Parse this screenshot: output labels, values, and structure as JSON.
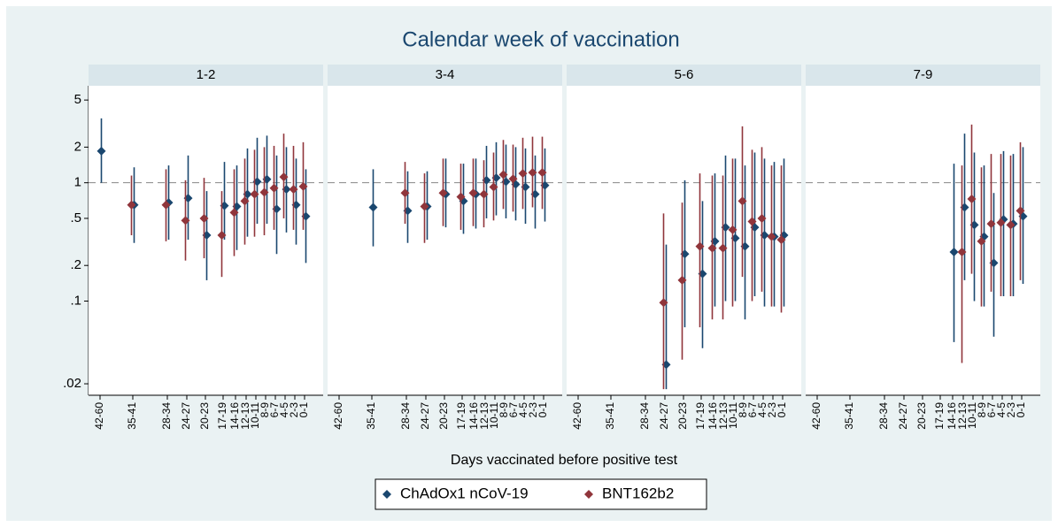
{
  "chart_data": {
    "type": "dot-ci",
    "title": "Calendar week of vaccination",
    "x_label": "Days vaccinated before positive test",
    "categories": [
      "42-60",
      "35-41",
      "28-34",
      "24-27",
      "20-23",
      "17-19",
      "14-16",
      "12-13",
      "10-11",
      "8-9",
      "6-7",
      "4-5",
      "2-3",
      "0-1"
    ],
    "log_scale": true,
    "ylim": [
      0.016,
      6.6
    ],
    "yticks": [
      {
        "value": 0.02,
        "label": ".02"
      },
      {
        "value": 0.1,
        "label": ".1"
      },
      {
        "value": 0.2,
        "label": ".2"
      },
      {
        "value": 0.5,
        "label": ".5"
      },
      1,
      2,
      5
    ],
    "reference_line": 1,
    "series": [
      {
        "name": "ChAdOx1 nCoV-19",
        "color": "#1a476f"
      },
      {
        "name": "BNT162b2",
        "color": "#90353b"
      }
    ],
    "panels": [
      {
        "title": "1-2",
        "series": [
          {
            "values": [
              1.85,
              0.65,
              0.68,
              0.74,
              0.36,
              0.64,
              0.63,
              0.8,
              1.02,
              1.07,
              0.6,
              0.88,
              0.65,
              0.52
            ],
            "lower": [
              1.0,
              0.31,
              0.33,
              0.33,
              0.15,
              0.33,
              0.27,
              0.35,
              0.45,
              0.45,
              0.25,
              0.38,
              0.3,
              0.21
            ],
            "upper": [
              3.5,
              1.35,
              1.4,
              1.7,
              0.85,
              1.5,
              1.4,
              1.95,
              2.4,
              2.5,
              1.7,
              2.0,
              1.6,
              1.3
            ]
          },
          {
            "values": [
              null,
              0.65,
              0.65,
              0.48,
              0.5,
              0.36,
              0.56,
              0.7,
              0.8,
              0.83,
              0.9,
              1.12,
              0.88,
              0.93
            ],
            "lower": [
              null,
              0.36,
              0.32,
              0.22,
              0.23,
              0.16,
              0.24,
              0.3,
              0.35,
              0.36,
              0.4,
              0.5,
              0.4,
              0.4
            ],
            "upper": [
              null,
              1.15,
              1.3,
              1.05,
              1.1,
              0.85,
              1.3,
              1.6,
              1.9,
              2.0,
              2.05,
              2.6,
              2.05,
              2.2
            ]
          }
        ]
      },
      {
        "title": "3-4",
        "series": [
          {
            "values": [
              null,
              0.62,
              0.58,
              0.63,
              0.8,
              0.7,
              0.8,
              1.05,
              1.1,
              1.02,
              0.97,
              0.92,
              0.8,
              0.95
            ],
            "lower": [
              null,
              0.29,
              0.31,
              0.33,
              0.42,
              0.37,
              0.41,
              0.5,
              0.53,
              0.5,
              0.48,
              0.45,
              0.41,
              0.47
            ],
            "upper": [
              null,
              1.3,
              1.25,
              1.25,
              1.6,
              1.45,
              1.6,
              2.05,
              2.2,
              2.1,
              2.0,
              1.95,
              1.7,
              1.95
            ]
          },
          {
            "values": [
              null,
              null,
              0.82,
              0.63,
              0.82,
              0.76,
              0.82,
              0.8,
              0.92,
              1.17,
              1.08,
              1.2,
              1.22,
              1.22
            ],
            "lower": [
              null,
              null,
              0.45,
              0.31,
              0.43,
              0.4,
              0.43,
              0.42,
              0.48,
              0.6,
              0.57,
              0.6,
              0.62,
              0.6
            ],
            "upper": [
              null,
              null,
              1.5,
              1.2,
              1.6,
              1.45,
              1.6,
              1.55,
              1.8,
              2.3,
              2.1,
              2.4,
              2.45,
              2.45
            ]
          }
        ]
      },
      {
        "title": "5-6",
        "series": [
          {
            "values": [
              null,
              null,
              null,
              0.029,
              0.25,
              0.17,
              0.32,
              0.42,
              0.34,
              0.29,
              0.42,
              0.36,
              0.35,
              0.36
            ],
            "lower": [
              null,
              null,
              null,
              0.018,
              0.06,
              0.04,
              0.09,
              0.1,
              0.1,
              0.07,
              0.11,
              0.09,
              0.09,
              0.09
            ],
            "upper": [
              null,
              null,
              null,
              0.3,
              1.05,
              0.7,
              1.2,
              1.7,
              1.6,
              1.4,
              1.8,
              1.6,
              1.5,
              1.6
            ]
          },
          {
            "values": [
              null,
              null,
              null,
              0.097,
              0.15,
              0.29,
              0.28,
              0.28,
              0.4,
              0.7,
              0.47,
              0.5,
              0.35,
              0.33
            ],
            "lower": [
              null,
              null,
              null,
              0.018,
              0.032,
              0.06,
              0.07,
              0.07,
              0.09,
              0.16,
              0.1,
              0.12,
              0.09,
              0.08
            ],
            "upper": [
              null,
              null,
              null,
              0.55,
              0.68,
              1.2,
              1.15,
              1.15,
              1.6,
              3.0,
              1.9,
              2.0,
              1.4,
              1.4
            ]
          }
        ]
      },
      {
        "title": "7-9",
        "series": [
          {
            "values": [
              null,
              null,
              null,
              null,
              null,
              null,
              0.26,
              0.62,
              0.44,
              0.35,
              0.21,
              0.49,
              0.45,
              0.52
            ],
            "lower": [
              null,
              null,
              null,
              null,
              null,
              null,
              0.045,
              0.15,
              0.1,
              0.09,
              0.05,
              0.11,
              0.11,
              0.14
            ],
            "upper": [
              null,
              null,
              null,
              null,
              null,
              null,
              1.45,
              2.6,
              1.8,
              1.4,
              0.82,
              1.85,
              1.75,
              2.0
            ]
          },
          {
            "values": [
              null,
              null,
              null,
              null,
              null,
              null,
              null,
              0.26,
              0.73,
              0.32,
              0.45,
              0.46,
              0.44,
              0.58
            ],
            "lower": [
              null,
              null,
              null,
              null,
              null,
              null,
              null,
              0.03,
              0.17,
              0.09,
              0.12,
              0.11,
              0.11,
              0.15
            ],
            "upper": [
              null,
              null,
              null,
              null,
              null,
              null,
              null,
              1.4,
              3.1,
              1.35,
              1.75,
              1.75,
              1.7,
              2.2
            ]
          }
        ]
      }
    ]
  }
}
